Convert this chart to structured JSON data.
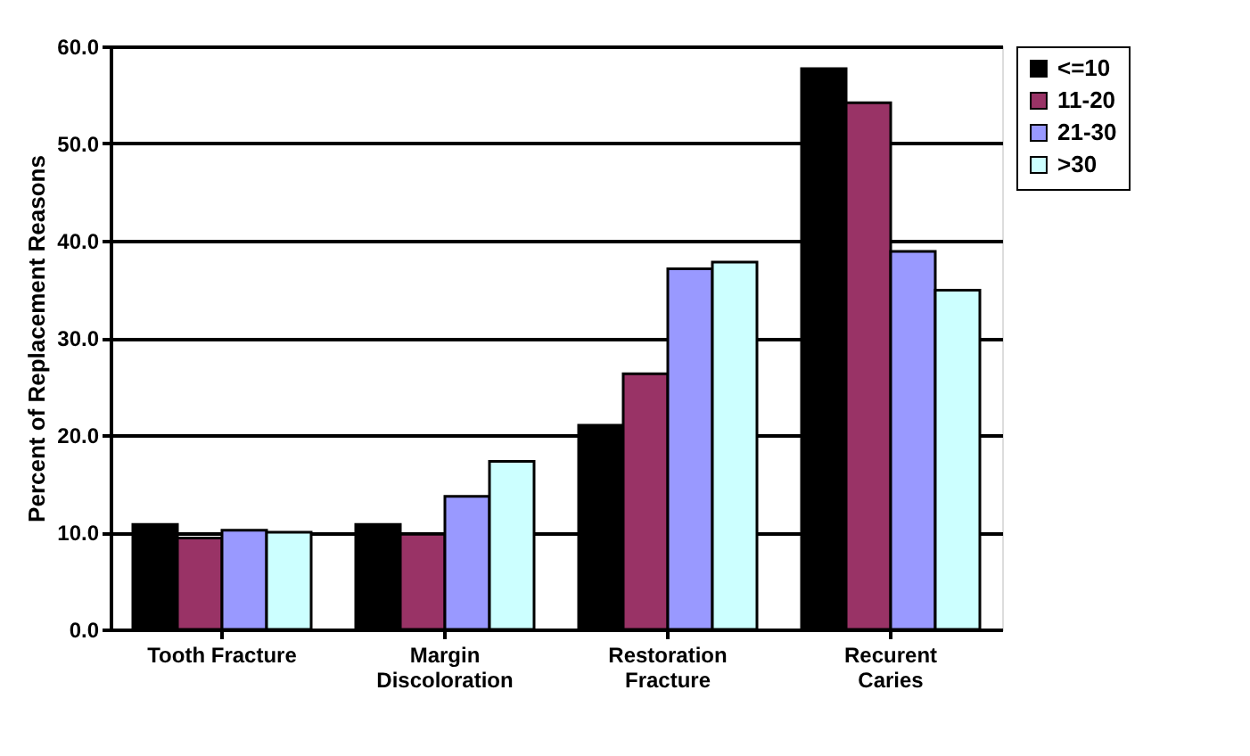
{
  "chart_data": {
    "type": "bar",
    "ylabel": "Percent of Replacement Reasons",
    "categories": [
      "Tooth Fracture",
      "Margin\nDiscoloration",
      "Restoration\nFracture",
      "Recurent\nCaries"
    ],
    "series": [
      {
        "name": "<=10",
        "color": "#000000",
        "values": [
          10.8,
          10.8,
          21.0,
          57.7
        ]
      },
      {
        "name": "11-20",
        "color": "#993366",
        "values": [
          9.4,
          9.8,
          26.3,
          54.2
        ]
      },
      {
        "name": "21-30",
        "color": "#9999ff",
        "values": [
          10.2,
          13.7,
          37.1,
          38.9
        ]
      },
      {
        "name": ">30",
        "color": "#ccffff",
        "values": [
          10.0,
          17.3,
          37.8,
          34.9
        ]
      }
    ],
    "ylim": [
      0,
      60
    ],
    "yticks": [
      {
        "value": 0,
        "label": "0.0"
      },
      {
        "value": 10,
        "label": "10.0"
      },
      {
        "value": 20,
        "label": "20.0"
      },
      {
        "value": 30,
        "label": "30.0"
      },
      {
        "value": 40,
        "label": "40.0"
      },
      {
        "value": 50,
        "label": "50.0"
      },
      {
        "value": 60,
        "label": "60.0"
      }
    ],
    "grid": "y",
    "legend": "top right"
  }
}
